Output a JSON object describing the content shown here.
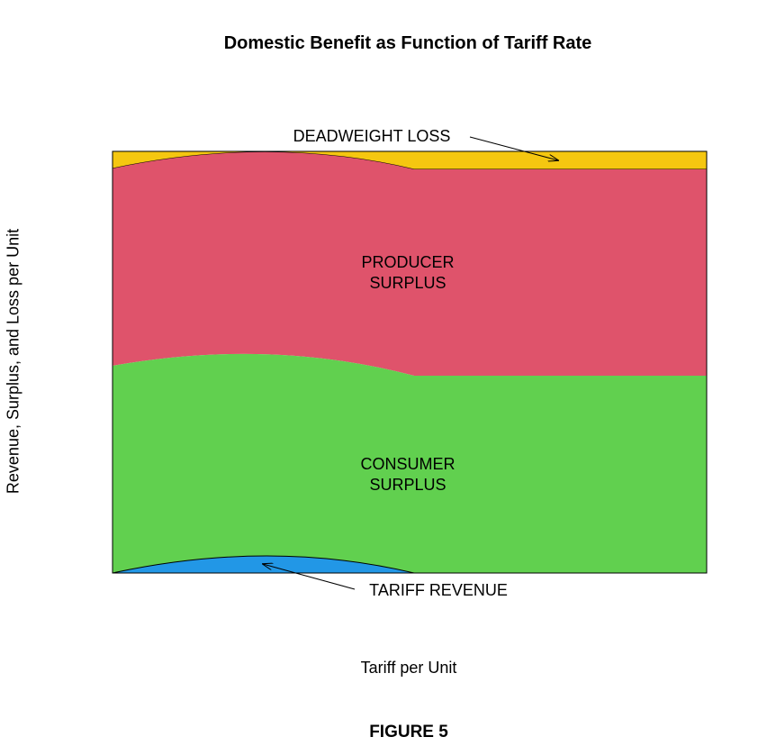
{
  "title": "Domestic Benefit as Function of Tariff Rate",
  "xlabel": "Tariff per Unit",
  "ylabel": "Revenue, Surplus, and Loss per Unit",
  "figure_label": "FIGURE 5",
  "regions": {
    "deadweight_loss": {
      "label": "DEADWEIGHT LOSS",
      "color": "#F5C710"
    },
    "producer_surplus": {
      "line1": "PRODUCER",
      "line2": "SURPLUS",
      "color": "#DF536B"
    },
    "consumer_surplus": {
      "line1": "CONSUMER",
      "line2": "SURPLUS",
      "color": "#61D04F"
    },
    "tariff_revenue": {
      "label": "TARIFF REVENUE",
      "color": "#2297E6"
    }
  }
}
